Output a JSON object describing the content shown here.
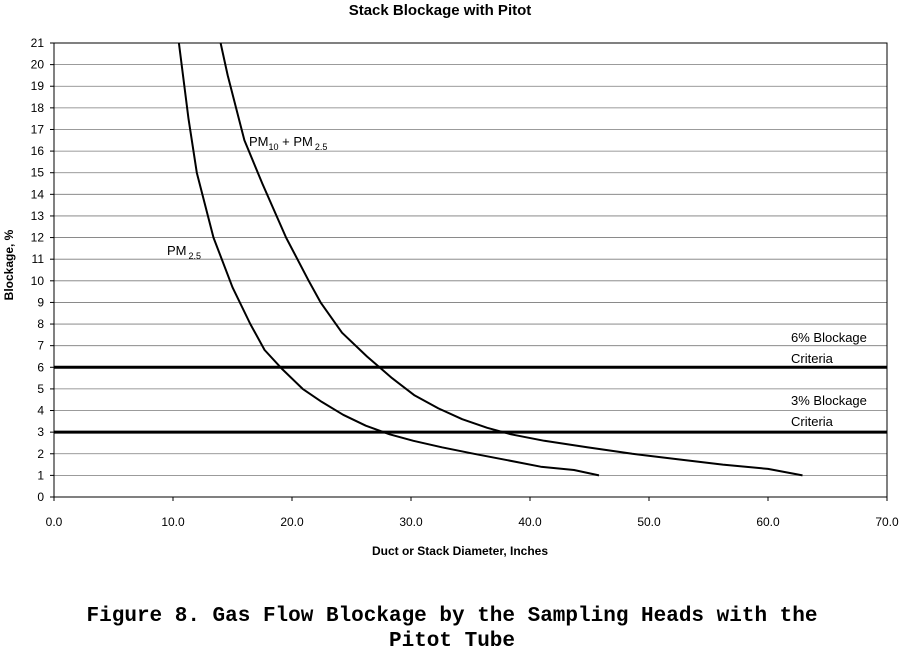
{
  "chart_data": {
    "type": "line",
    "title": "Stack Blockage with Pitot",
    "xlabel": "Duct or Stack Diameter, Inches",
    "ylabel": "Blockage, %",
    "xlim": [
      0,
      70
    ],
    "ylim": [
      0,
      21
    ],
    "x_ticks": [
      "0.0",
      "10.0",
      "20.0",
      "30.0",
      "40.0",
      "50.0",
      "60.0",
      "70.0"
    ],
    "x_tick_values": [
      0,
      10,
      20,
      30,
      40,
      50,
      60,
      70
    ],
    "y_ticks": [
      "0",
      "1",
      "2",
      "3",
      "4",
      "5",
      "6",
      "7",
      "8",
      "9",
      "10",
      "11",
      "12",
      "13",
      "14",
      "15",
      "16",
      "17",
      "18",
      "19",
      "20",
      "21"
    ],
    "y_tick_values": [
      0,
      1,
      2,
      3,
      4,
      5,
      6,
      7,
      8,
      9,
      10,
      11,
      12,
      13,
      14,
      15,
      16,
      17,
      18,
      19,
      20,
      21
    ],
    "grid": true,
    "series": [
      {
        "label_main": "PM",
        "label_sub": "2.5",
        "x": [
          10.5,
          11.3,
          12.0,
          13.4,
          15.0,
          16.5,
          17.7,
          19.2,
          20.9,
          22.5,
          24.3,
          26.2,
          28.2,
          30.2,
          32.6,
          35.3,
          38.1,
          40.9,
          43.7,
          45.8
        ],
        "y": [
          21,
          17.5,
          15.0,
          12.0,
          9.7,
          8.0,
          6.8,
          5.9,
          5.0,
          4.4,
          3.8,
          3.3,
          2.9,
          2.6,
          2.3,
          2.0,
          1.7,
          1.4,
          1.25,
          1.0
        ]
      },
      {
        "label_main": "PM",
        "label_sub": "10",
        "label_mid": " + PM",
        "label_sub2": "2.5",
        "x": [
          14.0,
          14.6,
          16.0,
          17.5,
          19.5,
          21.4,
          22.4,
          24.2,
          26.3,
          28.4,
          30.3,
          32.3,
          34.3,
          36.4,
          38.4,
          41.2,
          44.8,
          48.6,
          52.4,
          56.2,
          60.0,
          62.9
        ],
        "y": [
          21,
          19.5,
          16.5,
          14.5,
          12.0,
          10.0,
          9.0,
          7.6,
          6.5,
          5.5,
          4.7,
          4.1,
          3.6,
          3.2,
          2.9,
          2.6,
          2.3,
          2.0,
          1.75,
          1.5,
          1.3,
          1.0
        ]
      }
    ],
    "reference_lines": [
      {
        "y": 6,
        "label_line1": "6% Blockage",
        "label_line2": "Criteria"
      },
      {
        "y": 3,
        "label_line1": "3% Blockage",
        "label_line2": "Criteria"
      }
    ]
  },
  "caption": "Figure 8.  Gas Flow Blockage by the Sampling Heads with the\nPitot Tube"
}
